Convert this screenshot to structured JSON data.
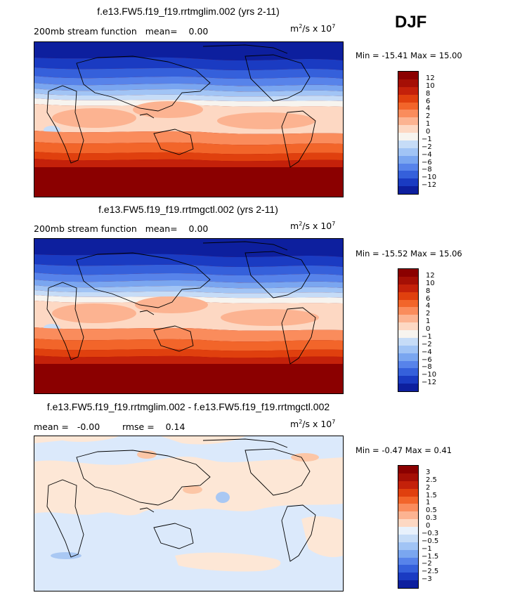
{
  "season": "DJF",
  "panels": [
    {
      "title": "f.e13.FW5.f19_f19.rrtmglim.002 (yrs 2-11)",
      "left_label": "200mb stream function   mean=    0.00",
      "units_base": "m",
      "units_exp": "2",
      "units_mid": "/s x 10",
      "units_exp2": "7",
      "min_label": "Min = ",
      "min": "-15.41",
      "max_label": " Max = ",
      "max": "15.00",
      "levels": [
        "12",
        "10",
        "8",
        "6",
        "4",
        "2",
        "1",
        "0",
        "-1",
        "-2",
        "-4",
        "-6",
        "-8",
        "-10",
        "-12"
      ],
      "colors": [
        "#8b0000",
        "#a50f05",
        "#c4210a",
        "#e0400e",
        "#f2652a",
        "#fa8c5c",
        "#fcb391",
        "#fdd8c3",
        "#f7f4ef",
        "#c6dcf7",
        "#a1c4f5",
        "#7aa6f0",
        "#5783ea",
        "#3560db",
        "#1a3bc2",
        "#0d1f9e"
      ]
    },
    {
      "title": "f.e13.FW5.f19_f19.rrtmgctl.002 (yrs 2-11)",
      "left_label": "200mb stream function   mean=    0.00",
      "units_base": "m",
      "units_exp": "2",
      "units_mid": "/s x 10",
      "units_exp2": "7",
      "min_label": "Min = ",
      "min": "-15.52",
      "max_label": " Max = ",
      "max": "15.06",
      "levels": [
        "12",
        "10",
        "8",
        "6",
        "4",
        "2",
        "1",
        "0",
        "-1",
        "-2",
        "-4",
        "-6",
        "-8",
        "-10",
        "-12"
      ],
      "colors": [
        "#8b0000",
        "#a50f05",
        "#c4210a",
        "#e0400e",
        "#f2652a",
        "#fa8c5c",
        "#fcb391",
        "#fdd8c3",
        "#f7f4ef",
        "#c6dcf7",
        "#a1c4f5",
        "#7aa6f0",
        "#5783ea",
        "#3560db",
        "#1a3bc2",
        "#0d1f9e"
      ]
    },
    {
      "title": "f.e13.FW5.f19_f19.rrtmglim.002 - f.e13.FW5.f19_f19.rrtmgctl.002",
      "left_label": "mean =   -0.00        rmse =    0.14",
      "units_base": "m",
      "units_exp": "2",
      "units_mid": "/s x 10",
      "units_exp2": "7",
      "min_label": "Min = ",
      "min": "-0.47",
      "max_label": " Max = ",
      "max": "0.41",
      "levels": [
        "3",
        "2.5",
        "2",
        "1.5",
        "1",
        "0.5",
        "0.3",
        "0",
        "-0.3",
        "-0.5",
        "-1",
        "-1.5",
        "-2",
        "-2.5",
        "-3"
      ],
      "colors": [
        "#8b0000",
        "#a50f05",
        "#c4210a",
        "#e0400e",
        "#f2652a",
        "#fa8c5c",
        "#fcb391",
        "#fdd8c3",
        "#e8f1fc",
        "#c6dcf7",
        "#a1c4f5",
        "#7aa6f0",
        "#5783ea",
        "#3560db",
        "#1a3bc2",
        "#0d1f9e"
      ]
    }
  ]
}
